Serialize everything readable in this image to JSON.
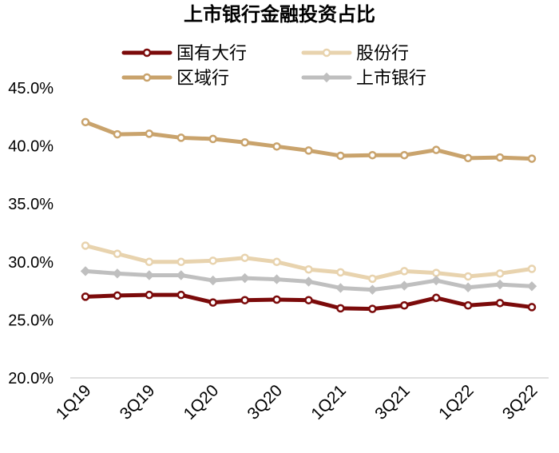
{
  "chart_data": {
    "type": "line",
    "title": "上市银行金融投资占比",
    "x": [
      "1Q19",
      "2Q19",
      "3Q19",
      "4Q19",
      "1Q20",
      "2Q20",
      "3Q20",
      "4Q20",
      "1Q21",
      "2Q21",
      "3Q21",
      "4Q21",
      "1Q22",
      "2Q22",
      "3Q22"
    ],
    "x_tick_labels_shown": [
      "1Q19",
      "3Q19",
      "1Q20",
      "3Q20",
      "1Q21",
      "3Q21",
      "1Q22",
      "3Q22"
    ],
    "ylim": [
      20,
      45
    ],
    "y_ticks": [
      20,
      25,
      30,
      35,
      40,
      45
    ],
    "y_tick_labels": [
      "20.0%",
      "25.0%",
      "30.0%",
      "35.0%",
      "40.0%",
      "45.0%"
    ],
    "y_unit": "%",
    "grid": false,
    "legend_position": "top",
    "series": [
      {
        "name": "国有大行",
        "color": "#7B0A0A",
        "marker": "circle-hollow",
        "values": [
          27.0,
          27.1,
          27.15,
          27.15,
          26.5,
          26.7,
          26.75,
          26.7,
          26.0,
          25.95,
          26.25,
          26.9,
          26.25,
          26.45,
          26.1
        ]
      },
      {
        "name": "股份行",
        "color": "#E8D3AE",
        "marker": "circle-hollow",
        "values": [
          31.4,
          30.7,
          30.0,
          30.0,
          30.1,
          30.35,
          30.0,
          29.35,
          29.1,
          28.55,
          29.2,
          29.05,
          28.75,
          29.0,
          29.4
        ]
      },
      {
        "name": "区域行",
        "color": "#C9A36C",
        "marker": "circle-hollow",
        "values": [
          42.05,
          41.0,
          41.05,
          40.7,
          40.6,
          40.3,
          39.95,
          39.6,
          39.15,
          39.2,
          39.2,
          39.65,
          38.95,
          39.0,
          38.9
        ]
      },
      {
        "name": "上市银行",
        "color": "#BFBFBF",
        "marker": "diamond",
        "values": [
          29.2,
          29.0,
          28.85,
          28.85,
          28.4,
          28.6,
          28.5,
          28.3,
          27.75,
          27.6,
          27.95,
          28.4,
          27.8,
          28.05,
          27.9
        ]
      }
    ]
  }
}
